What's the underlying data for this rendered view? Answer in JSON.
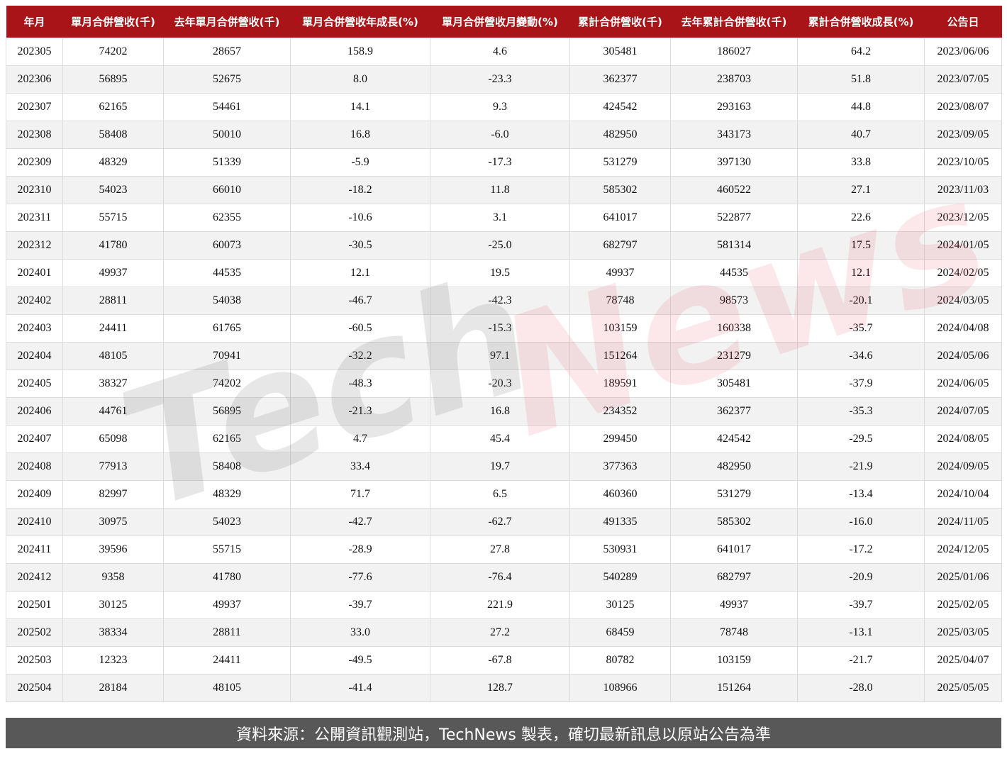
{
  "table": {
    "headers": [
      "年月",
      "單月合併營收(千)",
      "去年單月合併營收(千)",
      "單月合併營收年成長(%)",
      "單月合併營收月變動(%)",
      "累計合併營收(千)",
      "去年累計合併營收(千)",
      "累計合併營收成長(%)",
      "公告日"
    ],
    "rows": [
      [
        "202305",
        "74202",
        "28657",
        "158.9",
        "4.6",
        "305481",
        "186027",
        "64.2",
        "2023/06/06"
      ],
      [
        "202306",
        "56895",
        "52675",
        "8.0",
        "-23.3",
        "362377",
        "238703",
        "51.8",
        "2023/07/05"
      ],
      [
        "202307",
        "62165",
        "54461",
        "14.1",
        "9.3",
        "424542",
        "293163",
        "44.8",
        "2023/08/07"
      ],
      [
        "202308",
        "58408",
        "50010",
        "16.8",
        "-6.0",
        "482950",
        "343173",
        "40.7",
        "2023/09/05"
      ],
      [
        "202309",
        "48329",
        "51339",
        "-5.9",
        "-17.3",
        "531279",
        "397130",
        "33.8",
        "2023/10/05"
      ],
      [
        "202310",
        "54023",
        "66010",
        "-18.2",
        "11.8",
        "585302",
        "460522",
        "27.1",
        "2023/11/03"
      ],
      [
        "202311",
        "55715",
        "62355",
        "-10.6",
        "3.1",
        "641017",
        "522877",
        "22.6",
        "2023/12/05"
      ],
      [
        "202312",
        "41780",
        "60073",
        "-30.5",
        "-25.0",
        "682797",
        "581314",
        "17.5",
        "2024/01/05"
      ],
      [
        "202401",
        "49937",
        "44535",
        "12.1",
        "19.5",
        "49937",
        "44535",
        "12.1",
        "2024/02/05"
      ],
      [
        "202402",
        "28811",
        "54038",
        "-46.7",
        "-42.3",
        "78748",
        "98573",
        "-20.1",
        "2024/03/05"
      ],
      [
        "202403",
        "24411",
        "61765",
        "-60.5",
        "-15.3",
        "103159",
        "160338",
        "-35.7",
        "2024/04/08"
      ],
      [
        "202404",
        "48105",
        "70941",
        "-32.2",
        "97.1",
        "151264",
        "231279",
        "-34.6",
        "2024/05/06"
      ],
      [
        "202405",
        "38327",
        "74202",
        "-48.3",
        "-20.3",
        "189591",
        "305481",
        "-37.9",
        "2024/06/05"
      ],
      [
        "202406",
        "44761",
        "56895",
        "-21.3",
        "16.8",
        "234352",
        "362377",
        "-35.3",
        "2024/07/05"
      ],
      [
        "202407",
        "65098",
        "62165",
        "4.7",
        "45.4",
        "299450",
        "424542",
        "-29.5",
        "2024/08/05"
      ],
      [
        "202408",
        "77913",
        "58408",
        "33.4",
        "19.7",
        "377363",
        "482950",
        "-21.9",
        "2024/09/05"
      ],
      [
        "202409",
        "82997",
        "48329",
        "71.7",
        "6.5",
        "460360",
        "531279",
        "-13.4",
        "2024/10/04"
      ],
      [
        "202410",
        "30975",
        "54023",
        "-42.7",
        "-62.7",
        "491335",
        "585302",
        "-16.0",
        "2024/11/05"
      ],
      [
        "202411",
        "39596",
        "55715",
        "-28.9",
        "27.8",
        "530931",
        "641017",
        "-17.2",
        "2024/12/05"
      ],
      [
        "202412",
        "9358",
        "41780",
        "-77.6",
        "-76.4",
        "540289",
        "682797",
        "-20.9",
        "2025/01/06"
      ],
      [
        "202501",
        "30125",
        "49937",
        "-39.7",
        "221.9",
        "30125",
        "49937",
        "-39.7",
        "2025/02/05"
      ],
      [
        "202502",
        "38334",
        "28811",
        "33.0",
        "27.2",
        "68459",
        "78748",
        "-13.1",
        "2025/03/05"
      ],
      [
        "202503",
        "12323",
        "24411",
        "-49.5",
        "-67.8",
        "80782",
        "103159",
        "-21.7",
        "2025/04/07"
      ],
      [
        "202504",
        "28184",
        "48105",
        "-41.4",
        "128.7",
        "108966",
        "151264",
        "-28.0",
        "2025/05/05"
      ]
    ]
  },
  "watermark": {
    "part1": "Tech",
    "part2": "News"
  },
  "footer": {
    "text": "資料來源：公開資訊觀測站，TechNews 製表，確切最新訊息以原站公告為準"
  },
  "colors": {
    "header_bg": "#a81417",
    "footer_bg": "#585858",
    "stripe": "#f2f2f2"
  }
}
